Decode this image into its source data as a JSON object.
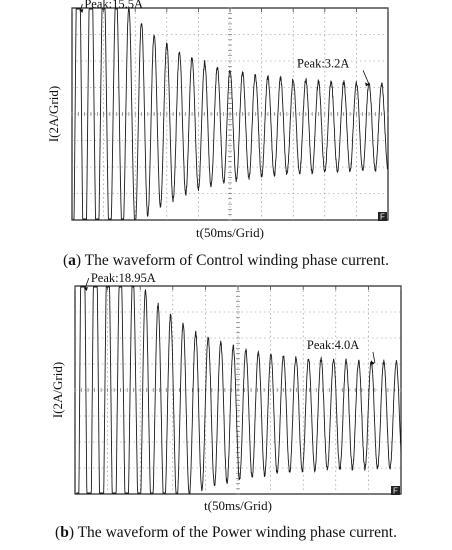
{
  "chart_data": [
    {
      "type": "line",
      "xlabel": "t(50ms/Grid)",
      "ylabel": "I(2A/Grid)",
      "caption_tag": "a",
      "caption_text": "The waveform of Control winding phase current.",
      "x_scale": "50 ms per grid division",
      "y_scale": "2 A per grid division",
      "grid": true,
      "x_divisions": 10,
      "y_divisions": 8,
      "duration_ms": 500,
      "cycles": 25,
      "steady_amplitude_A": 3.2,
      "transient_decay_ms": 95,
      "annotations": [
        {
          "text": "Peak:15.5A",
          "t_ms": 10,
          "i_A": 15.5
        },
        {
          "text": "Peak:3.2A",
          "t_ms": 470,
          "i_A": 3.2
        }
      ],
      "corner_label": "F"
    },
    {
      "type": "line",
      "xlabel": "t(50ms/Grid)",
      "ylabel": "I(2A/Grid)",
      "caption_tag": "b",
      "caption_text": "The waveform of the Power winding phase current.",
      "x_scale": "50 ms per grid division",
      "y_scale": "2 A per grid division",
      "grid": true,
      "x_divisions": 10,
      "y_divisions": 8,
      "duration_ms": 500,
      "cycles": 26,
      "steady_amplitude_A": 4.0,
      "transient_decay_ms": 90,
      "annotations": [
        {
          "text": "Peak:18.95A",
          "t_ms": 12,
          "i_A": 18.95
        },
        {
          "text": "Peak:4.0A",
          "t_ms": 460,
          "i_A": 4.0
        }
      ],
      "corner_label": "F"
    }
  ]
}
